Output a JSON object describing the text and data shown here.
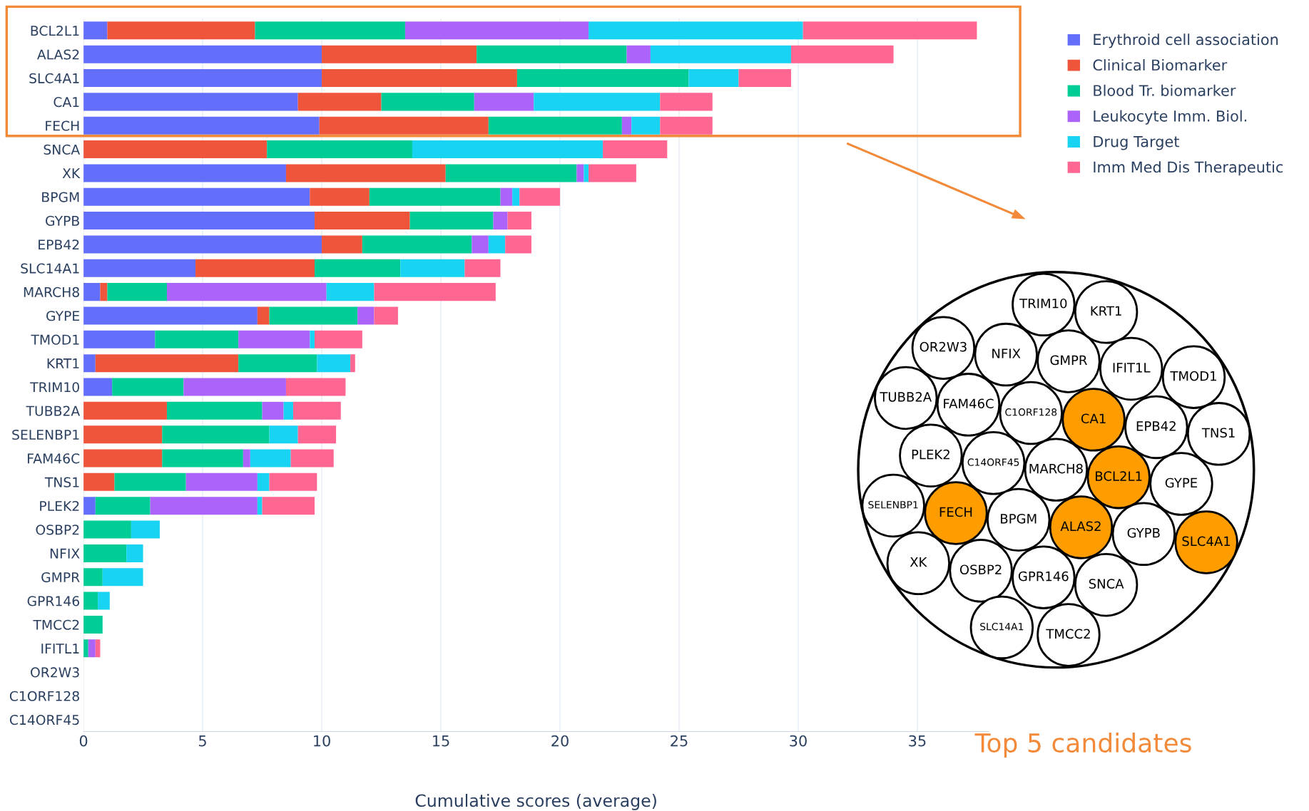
{
  "chart_data": {
    "type": "bar",
    "orientation": "horizontal",
    "stacked": true,
    "categories": [
      "BCL2L1",
      "ALAS2",
      "SLC4A1",
      "CA1",
      "FECH",
      "SNCA",
      "XK",
      "BPGM",
      "GYPB",
      "EPB42",
      "SLC14A1",
      "MARCH8",
      "GYPE",
      "TMOD1",
      "KRT1",
      "TRIM10",
      "TUBB2A",
      "SELENBP1",
      "FAM46C",
      "TNS1",
      "PLEK2",
      "OSBP2",
      "NFIX",
      "GMPR",
      "GPR146",
      "TMCC2",
      "IFITL1",
      "OR2W3",
      "C1ORF128",
      "C14ORF45"
    ],
    "series": [
      {
        "name": "Erythroid cell association",
        "color": "#636efa",
        "values": [
          1.0,
          10.0,
          10.0,
          9.0,
          9.9,
          0,
          8.5,
          9.5,
          9.7,
          10.0,
          4.7,
          0.7,
          7.3,
          3.0,
          0.5,
          1.2,
          0,
          0,
          0,
          0,
          0.5,
          0,
          0,
          0,
          0,
          0,
          0,
          0,
          0,
          0
        ]
      },
      {
        "name": "Clinical Biomarker",
        "color": "#ef553b",
        "values": [
          6.2,
          6.5,
          8.2,
          3.5,
          7.1,
          7.7,
          6.7,
          2.5,
          4.0,
          1.7,
          5.0,
          0.3,
          0.5,
          0,
          6.0,
          0,
          3.5,
          3.3,
          3.3,
          1.3,
          0,
          0,
          0,
          0,
          0,
          0,
          0,
          0,
          0,
          0
        ]
      },
      {
        "name": "Blood Tr. biomarker",
        "color": "#00cc96",
        "values": [
          6.3,
          6.3,
          7.2,
          3.9,
          5.6,
          6.1,
          5.5,
          5.5,
          3.5,
          4.6,
          3.6,
          2.5,
          3.7,
          3.5,
          3.3,
          3.0,
          4.0,
          4.5,
          3.4,
          3.0,
          2.3,
          2.0,
          1.8,
          0.8,
          0.6,
          0.8,
          0.2,
          0,
          0,
          0
        ]
      },
      {
        "name": "Leukocyte Imm. Biol.",
        "color": "#ab63fa",
        "values": [
          7.7,
          1.0,
          0,
          2.5,
          0.4,
          0,
          0.3,
          0.5,
          0.6,
          0.7,
          0,
          6.7,
          0.7,
          3.0,
          0,
          4.3,
          0.9,
          0,
          0.3,
          3.0,
          4.5,
          0,
          0,
          0,
          0,
          0,
          0.3,
          0,
          0,
          0
        ]
      },
      {
        "name": "Drug Target",
        "color": "#19d3f3",
        "values": [
          9.0,
          5.9,
          2.1,
          5.3,
          1.2,
          8.0,
          0.2,
          0.3,
          0,
          0.7,
          2.7,
          2.0,
          0,
          0.2,
          1.4,
          0,
          0.4,
          1.2,
          1.7,
          0.5,
          0.2,
          1.2,
          0.7,
          1.7,
          0.5,
          0,
          0,
          0,
          0,
          0
        ]
      },
      {
        "name": "Imm Med Dis Therapeutic",
        "color": "#ff6692",
        "values": [
          7.3,
          4.3,
          2.2,
          2.2,
          2.2,
          2.7,
          2.0,
          1.7,
          1.0,
          1.1,
          1.5,
          5.1,
          1.0,
          2.0,
          0.2,
          2.5,
          2.0,
          1.6,
          1.8,
          2.0,
          2.2,
          0,
          0,
          0,
          0,
          0,
          0.2,
          0,
          0,
          0
        ]
      }
    ],
    "xlim": [
      0,
      38
    ],
    "xticks": [
      0,
      5,
      10,
      15,
      20,
      25,
      30,
      35
    ],
    "grid": "x",
    "legend": "top right",
    "xlabel": "Cumulative scores (average)",
    "annotations": [
      "Top 5 candidates",
      "TRIM10",
      "KRT1",
      "OR2W3",
      "NFIX",
      "GMPR",
      "IFIT1L",
      "TMOD1",
      "TUBB2A",
      "FAM46C",
      "C1ORF128",
      "CA1",
      "EPB42",
      "TNS1",
      "PLEK2",
      "C14ORF45",
      "MARCH8",
      "BCL2L1",
      "GYPE",
      "SELENBP1",
      "FECH",
      "BPGM",
      "ALAS2",
      "GYPB",
      "SLC4A1",
      "XK",
      "OSBP2",
      "GPR146",
      "SNCA",
      "SLC14A1",
      "TMCC2"
    ]
  }
}
